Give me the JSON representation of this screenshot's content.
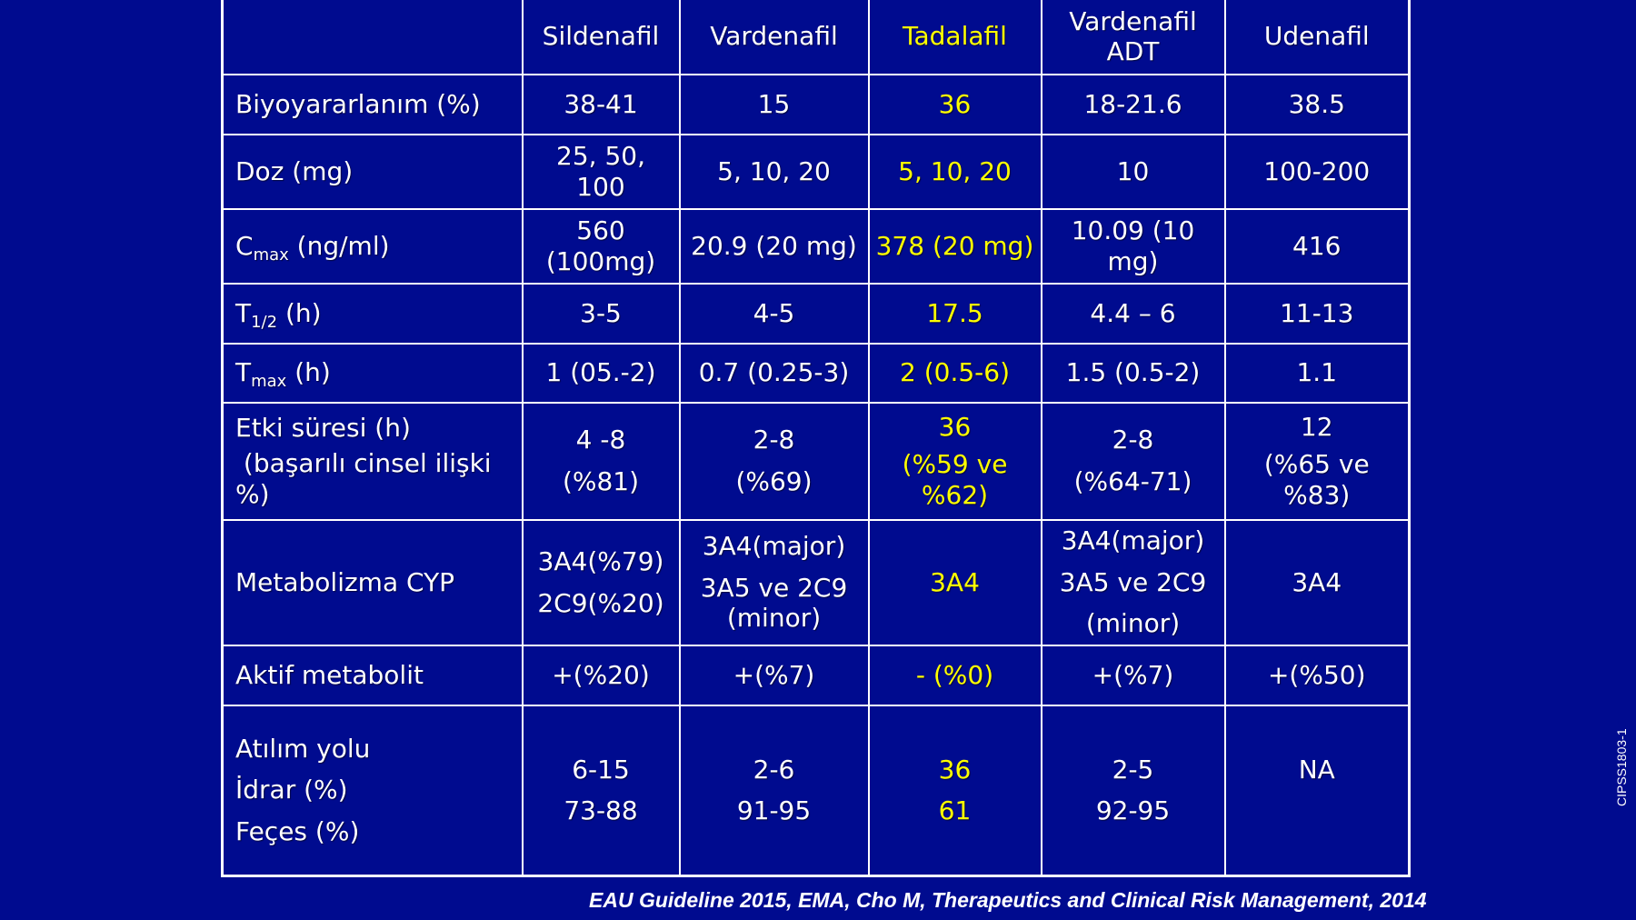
{
  "table": {
    "headers": {
      "sildenafil": "Sildenafil",
      "vardenafil": "Vardenafil",
      "tadalafil": "Tadalafil",
      "vardenafil_adt_line1": "Vardenafil",
      "vardenafil_adt_line2": "ADT",
      "udenafil": "Udenafil"
    },
    "rows": {
      "bioavailability": {
        "label": "Biyoyararlanım (%)",
        "sildenafil": "38-41",
        "vardenafil": "15",
        "tadalafil": "36",
        "vardenafil_adt": "18-21.6",
        "udenafil": "38.5"
      },
      "dose": {
        "label": "Doz (mg)",
        "sildenafil_line1": "25, 50,",
        "sildenafil_line2": "100",
        "vardenafil": "5, 10, 20",
        "tadalafil": "5, 10, 20",
        "vardenafil_adt": "10",
        "udenafil": "100-200"
      },
      "cmax": {
        "label_main": "C",
        "label_sub": "max",
        "label_rest": " (ng/ml)",
        "sildenafil_line1": "560",
        "sildenafil_line2": "(100mg)",
        "vardenafil": "20.9 (20 mg)",
        "tadalafil": "378 (20 mg)",
        "vardenafil_adt_line1": "10.09 (10",
        "vardenafil_adt_line2": "mg)",
        "udenafil": "416"
      },
      "half_life": {
        "label_main": "T",
        "label_sub": "1/2",
        "label_rest": " (h)",
        "sildenafil": "3-5",
        "vardenafil": "4-5",
        "tadalafil": "17.5",
        "vardenafil_adt": "4.4 – 6",
        "udenafil": "11-13"
      },
      "tmax": {
        "label_main": "T",
        "label_sub": "max",
        "label_rest": " (h)",
        "sildenafil": "1 (05.-2)",
        "vardenafil": "0.7 (0.25-3)",
        "tadalafil": "2 (0.5-6)",
        "vardenafil_adt": "1.5 (0.5-2)",
        "udenafil": "1.1"
      },
      "duration": {
        "label_line1": "Etki süresi (h)",
        "label_line2": " (başarılı cinsel ilişki",
        "label_line3": "%)",
        "sildenafil_line1": "4 -8",
        "sildenafil_line2": "(%81)",
        "vardenafil_line1": "2-8",
        "vardenafil_line2": "(%69)",
        "tadalafil_line1": "36",
        "tadalafil_line2": "(%59 ve",
        "tadalafil_line3": "%62)",
        "vardenafil_adt_line1": "2-8",
        "vardenafil_adt_line2": "(%64-71)",
        "udenafil_line1": "12",
        "udenafil_line2": "(%65 ve",
        "udenafil_line3": "%83)"
      },
      "metabolism": {
        "label": "Metabolizma CYP",
        "sildenafil_line1": "3A4(%79)",
        "sildenafil_line2": "2C9(%20)",
        "vardenafil_line1": "3A4(major)",
        "vardenafil_line2": "3A5 ve 2C9",
        "vardenafil_line3": "(minor)",
        "tadalafil": "3A4",
        "vardenafil_adt_line1": "3A4(major)",
        "vardenafil_adt_line2": "3A5 ve 2C9",
        "vardenafil_adt_line3": "(minor)",
        "udenafil": "3A4"
      },
      "active_metabolite": {
        "label": "Aktif metabolit",
        "sildenafil": "+(%20)",
        "vardenafil": "+(%7)",
        "tadalafil": "- (%0)",
        "vardenafil_adt": "+(%7)",
        "udenafil": "+(%50)"
      },
      "excretion": {
        "label_line1": "Atılım yolu",
        "label_line2": "İdrar (%)",
        "label_line3": "Feçes (%)",
        "sildenafil_urine": "6-15",
        "sildenafil_feces": "73-88",
        "vardenafil_urine": "2-6",
        "vardenafil_feces": "91-95",
        "tadalafil_urine": "36",
        "tadalafil_feces": "61",
        "vardenafil_adt_urine": "2-5",
        "vardenafil_adt_feces": "92-95",
        "udenafil": "NA"
      }
    }
  },
  "citation": "EAU Guideline 2015, EMA, Cho M, Therapeutics and Clinical Risk Management, 2014",
  "slide_code": "CIPSS1803-1",
  "colors": {
    "background": "#000b8f",
    "text": "#ffffff",
    "highlight": "#ffff00",
    "grid": "#ffffff"
  }
}
